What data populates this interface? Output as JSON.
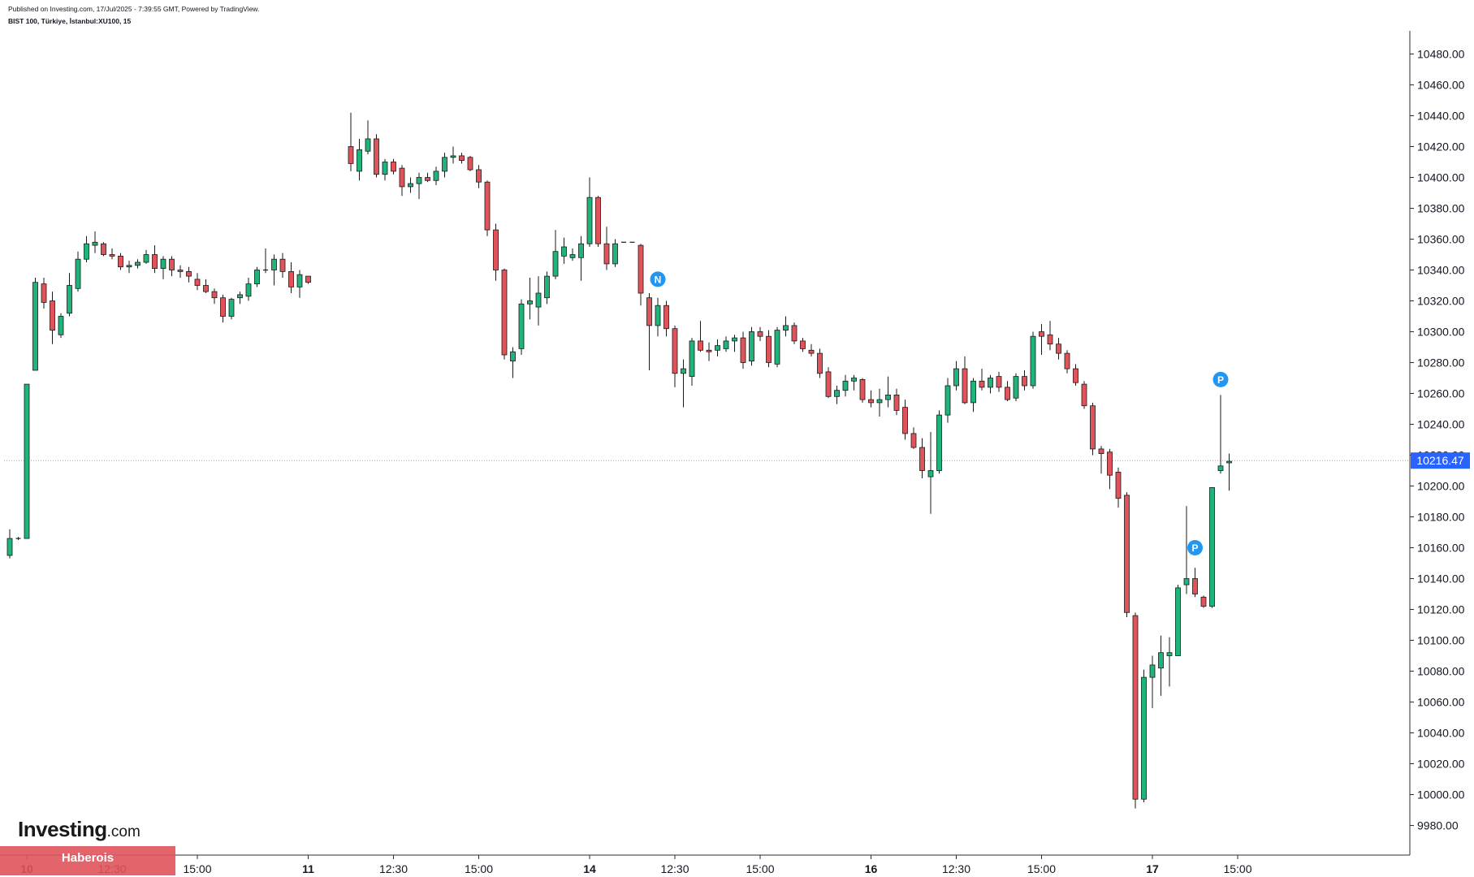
{
  "header": {
    "published": "Published on Investing.com, 17/Jul/2025 - 7:39:55 GMT, Powered by TradingView.",
    "symbol": "BIST 100, Türkiye, İstanbul:XU100, 15"
  },
  "logo": {
    "brand": "Investing",
    "domain": ".com"
  },
  "badge": {
    "text": "Haberois"
  },
  "chart_data": {
    "type": "candlestick",
    "x_axis_labels": [
      {
        "text": "10",
        "bold": true,
        "index": 2
      },
      {
        "text": "12:30",
        "bold": false,
        "index": 12
      },
      {
        "text": "15:00",
        "bold": false,
        "index": 22
      },
      {
        "text": "11",
        "bold": true,
        "index": 35
      },
      {
        "text": "12:30",
        "bold": false,
        "index": 45
      },
      {
        "text": "15:00",
        "bold": false,
        "index": 55
      },
      {
        "text": "14",
        "bold": true,
        "index": 68
      },
      {
        "text": "12:30",
        "bold": false,
        "index": 78
      },
      {
        "text": "15:00",
        "bold": false,
        "index": 88
      },
      {
        "text": "16",
        "bold": true,
        "index": 101
      },
      {
        "text": "12:30",
        "bold": false,
        "index": 111
      },
      {
        "text": "15:00",
        "bold": false,
        "index": 121
      },
      {
        "text": "17",
        "bold": true,
        "index": 134
      },
      {
        "text": "15:00",
        "bold": false,
        "index": 144
      }
    ],
    "y_axis": {
      "min": 9965,
      "max": 10500,
      "ticks": [
        9980,
        10000,
        10020,
        10040,
        10060,
        10080,
        10100,
        10120,
        10140,
        10160,
        10180,
        10200,
        10220,
        10240,
        10260,
        10280,
        10300,
        10320,
        10340,
        10360,
        10380,
        10400,
        10420,
        10440,
        10460,
        10480
      ],
      "tick_labels": [
        "9980.00",
        "10000.00",
        "10020.00",
        "10040.00",
        "10060.00",
        "10080.00",
        "10100.00",
        "10120.00",
        "10140.00",
        "10160.00",
        "10180.00",
        "10200.00",
        "10220.00",
        "10240.00",
        "10260.00",
        "10280.00",
        "10300.00",
        "10320.00",
        "10340.00",
        "10360.00",
        "10380.00",
        "10400.00",
        "10420.00",
        "10440.00",
        "10460.00",
        "10480.00"
      ]
    },
    "last_price": {
      "value": 10216.47,
      "label": "10216.47"
    },
    "colors": {
      "up": "#1fb47a",
      "down": "#e0535a",
      "outline": "#1a1a1a",
      "price_tag": "#2962ff",
      "marker": "#2196f3",
      "axis_text": "#131722"
    },
    "candles": [
      {
        "i": 0,
        "o": 10155,
        "h": 10172,
        "l": 10153,
        "c": 10166
      },
      {
        "i": 1,
        "o": 10166,
        "h": 10167,
        "l": 10165,
        "c": 10166
      },
      {
        "i": 2,
        "o": 10166,
        "h": 10266,
        "l": 10166,
        "c": 10266
      },
      {
        "i": 3,
        "o": 10275,
        "h": 10335,
        "l": 10275,
        "c": 10332
      },
      {
        "i": 4,
        "o": 10331,
        "h": 10335,
        "l": 10315,
        "c": 10319
      },
      {
        "i": 5,
        "o": 10320,
        "h": 10326,
        "l": 10292,
        "c": 10301
      },
      {
        "i": 6,
        "o": 10298,
        "h": 10312,
        "l": 10296,
        "c": 10310
      },
      {
        "i": 7,
        "o": 10312,
        "h": 10338,
        "l": 10310,
        "c": 10330
      },
      {
        "i": 8,
        "o": 10328,
        "h": 10352,
        "l": 10326,
        "c": 10347
      },
      {
        "i": 9,
        "o": 10347,
        "h": 10362,
        "l": 10345,
        "c": 10357
      },
      {
        "i": 10,
        "o": 10356,
        "h": 10365,
        "l": 10351,
        "c": 10358
      },
      {
        "i": 11,
        "o": 10357,
        "h": 10358,
        "l": 10349,
        "c": 10350
      },
      {
        "i": 12,
        "o": 10350,
        "h": 10354,
        "l": 10347,
        "c": 10349
      },
      {
        "i": 13,
        "o": 10349,
        "h": 10351,
        "l": 10340,
        "c": 10342
      },
      {
        "i": 14,
        "o": 10342,
        "h": 10346,
        "l": 10338,
        "c": 10343
      },
      {
        "i": 15,
        "o": 10343,
        "h": 10347,
        "l": 10341,
        "c": 10345
      },
      {
        "i": 16,
        "o": 10345,
        "h": 10353,
        "l": 10344,
        "c": 10350
      },
      {
        "i": 17,
        "o": 10350,
        "h": 10356,
        "l": 10338,
        "c": 10341
      },
      {
        "i": 18,
        "o": 10341,
        "h": 10349,
        "l": 10334,
        "c": 10347
      },
      {
        "i": 19,
        "o": 10347,
        "h": 10349,
        "l": 10336,
        "c": 10340
      },
      {
        "i": 20,
        "o": 10340,
        "h": 10343,
        "l": 10335,
        "c": 10339
      },
      {
        "i": 21,
        "o": 10339,
        "h": 10342,
        "l": 10332,
        "c": 10336
      },
      {
        "i": 22,
        "o": 10334,
        "h": 10338,
        "l": 10327,
        "c": 10330
      },
      {
        "i": 23,
        "o": 10330,
        "h": 10334,
        "l": 10325,
        "c": 10326
      },
      {
        "i": 24,
        "o": 10326,
        "h": 10328,
        "l": 10318,
        "c": 10322
      },
      {
        "i": 25,
        "o": 10322,
        "h": 10324,
        "l": 10306,
        "c": 10310
      },
      {
        "i": 26,
        "o": 10310,
        "h": 10322,
        "l": 10308,
        "c": 10321
      },
      {
        "i": 27,
        "o": 10322,
        "h": 10326,
        "l": 10318,
        "c": 10324
      },
      {
        "i": 28,
        "o": 10323,
        "h": 10335,
        "l": 10320,
        "c": 10331
      },
      {
        "i": 29,
        "o": 10331,
        "h": 10342,
        "l": 10329,
        "c": 10340
      },
      {
        "i": 30,
        "o": 10340,
        "h": 10354,
        "l": 10338,
        "c": 10340
      },
      {
        "i": 31,
        "o": 10340,
        "h": 10350,
        "l": 10330,
        "c": 10347
      },
      {
        "i": 32,
        "o": 10347,
        "h": 10351,
        "l": 10335,
        "c": 10339
      },
      {
        "i": 33,
        "o": 10339,
        "h": 10345,
        "l": 10325,
        "c": 10329
      },
      {
        "i": 34,
        "o": 10329,
        "h": 10340,
        "l": 10322,
        "c": 10337
      },
      {
        "i": 35,
        "o": 10336,
        "h": 10336,
        "l": 10331,
        "c": 10332
      },
      {
        "i": 40,
        "o": 10420,
        "h": 10442,
        "l": 10404,
        "c": 10409
      },
      {
        "i": 41,
        "o": 10404,
        "h": 10425,
        "l": 10398,
        "c": 10418
      },
      {
        "i": 42,
        "o": 10417,
        "h": 10437,
        "l": 10415,
        "c": 10425
      },
      {
        "i": 43,
        "o": 10425,
        "h": 10428,
        "l": 10400,
        "c": 10402
      },
      {
        "i": 44,
        "o": 10402,
        "h": 10412,
        "l": 10398,
        "c": 10410
      },
      {
        "i": 45,
        "o": 10410,
        "h": 10412,
        "l": 10402,
        "c": 10404
      },
      {
        "i": 46,
        "o": 10406,
        "h": 10408,
        "l": 10388,
        "c": 10394
      },
      {
        "i": 47,
        "o": 10394,
        "h": 10400,
        "l": 10390,
        "c": 10396
      },
      {
        "i": 48,
        "o": 10396,
        "h": 10403,
        "l": 10386,
        "c": 10400
      },
      {
        "i": 49,
        "o": 10400,
        "h": 10403,
        "l": 10397,
        "c": 10398
      },
      {
        "i": 50,
        "o": 10398,
        "h": 10407,
        "l": 10395,
        "c": 10404
      },
      {
        "i": 51,
        "o": 10404,
        "h": 10416,
        "l": 10400,
        "c": 10413
      },
      {
        "i": 52,
        "o": 10413,
        "h": 10420,
        "l": 10409,
        "c": 10414
      },
      {
        "i": 53,
        "o": 10414,
        "h": 10416,
        "l": 10409,
        "c": 10411
      },
      {
        "i": 54,
        "o": 10413,
        "h": 10414,
        "l": 10404,
        "c": 10405
      },
      {
        "i": 55,
        "o": 10405,
        "h": 10408,
        "l": 10393,
        "c": 10397
      },
      {
        "i": 56,
        "o": 10397,
        "h": 10398,
        "l": 10362,
        "c": 10366
      },
      {
        "i": 57,
        "o": 10366,
        "h": 10370,
        "l": 10333,
        "c": 10340
      },
      {
        "i": 58,
        "o": 10340,
        "h": 10341,
        "l": 10282,
        "c": 10285
      },
      {
        "i": 59,
        "o": 10281,
        "h": 10290,
        "l": 10270,
        "c": 10287
      },
      {
        "i": 60,
        "o": 10289,
        "h": 10321,
        "l": 10285,
        "c": 10318
      },
      {
        "i": 61,
        "o": 10318,
        "h": 10335,
        "l": 10308,
        "c": 10320
      },
      {
        "i": 62,
        "o": 10316,
        "h": 10336,
        "l": 10304,
        "c": 10325
      },
      {
        "i": 63,
        "o": 10322,
        "h": 10339,
        "l": 10318,
        "c": 10336
      },
      {
        "i": 64,
        "o": 10336,
        "h": 10366,
        "l": 10334,
        "c": 10352
      },
      {
        "i": 65,
        "o": 10349,
        "h": 10361,
        "l": 10344,
        "c": 10355
      },
      {
        "i": 66,
        "o": 10348,
        "h": 10354,
        "l": 10346,
        "c": 10350
      },
      {
        "i": 67,
        "o": 10348,
        "h": 10362,
        "l": 10333,
        "c": 10357
      },
      {
        "i": 68,
        "o": 10357,
        "h": 10400,
        "l": 10355,
        "c": 10387
      },
      {
        "i": 69,
        "o": 10387,
        "h": 10388,
        "l": 10355,
        "c": 10357
      },
      {
        "i": 70,
        "o": 10357,
        "h": 10368,
        "l": 10340,
        "c": 10344
      },
      {
        "i": 71,
        "o": 10344,
        "h": 10360,
        "l": 10342,
        "c": 10357
      },
      {
        "i": 72,
        "o": 10358,
        "h": 10358,
        "l": 10358,
        "c": 10358
      },
      {
        "i": 73,
        "o": 10358,
        "h": 10358,
        "l": 10358,
        "c": 10358
      },
      {
        "i": 74,
        "o": 10356,
        "h": 10357,
        "l": 10317,
        "c": 10325
      },
      {
        "i": 75,
        "o": 10322,
        "h": 10325,
        "l": 10275,
        "c": 10304
      },
      {
        "i": 76,
        "o": 10304,
        "h": 10322,
        "l": 10297,
        "c": 10317
      },
      {
        "i": 77,
        "o": 10317,
        "h": 10320,
        "l": 10297,
        "c": 10302
      },
      {
        "i": 78,
        "o": 10302,
        "h": 10304,
        "l": 10264,
        "c": 10273
      },
      {
        "i": 79,
        "o": 10273,
        "h": 10282,
        "l": 10251,
        "c": 10276
      },
      {
        "i": 80,
        "o": 10271,
        "h": 10296,
        "l": 10265,
        "c": 10294
      },
      {
        "i": 81,
        "o": 10294,
        "h": 10307,
        "l": 10287,
        "c": 10288
      },
      {
        "i": 82,
        "o": 10288,
        "h": 10293,
        "l": 10281,
        "c": 10287
      },
      {
        "i": 83,
        "o": 10288,
        "h": 10295,
        "l": 10284,
        "c": 10291
      },
      {
        "i": 84,
        "o": 10289,
        "h": 10297,
        "l": 10287,
        "c": 10294
      },
      {
        "i": 85,
        "o": 10294,
        "h": 10298,
        "l": 10287,
        "c": 10296
      },
      {
        "i": 86,
        "o": 10296,
        "h": 10300,
        "l": 10276,
        "c": 10280
      },
      {
        "i": 87,
        "o": 10281,
        "h": 10303,
        "l": 10278,
        "c": 10300
      },
      {
        "i": 88,
        "o": 10300,
        "h": 10303,
        "l": 10294,
        "c": 10297
      },
      {
        "i": 89,
        "o": 10297,
        "h": 10301,
        "l": 10277,
        "c": 10280
      },
      {
        "i": 90,
        "o": 10279,
        "h": 10303,
        "l": 10277,
        "c": 10301
      },
      {
        "i": 91,
        "o": 10301,
        "h": 10310,
        "l": 10297,
        "c": 10304
      },
      {
        "i": 92,
        "o": 10304,
        "h": 10306,
        "l": 10292,
        "c": 10294
      },
      {
        "i": 93,
        "o": 10294,
        "h": 10296,
        "l": 10287,
        "c": 10289
      },
      {
        "i": 94,
        "o": 10288,
        "h": 10292,
        "l": 10284,
        "c": 10286
      },
      {
        "i": 95,
        "o": 10286,
        "h": 10289,
        "l": 10270,
        "c": 10273
      },
      {
        "i": 96,
        "o": 10274,
        "h": 10277,
        "l": 10257,
        "c": 10258
      },
      {
        "i": 97,
        "o": 10258,
        "h": 10265,
        "l": 10253,
        "c": 10262
      },
      {
        "i": 98,
        "o": 10262,
        "h": 10272,
        "l": 10258,
        "c": 10268
      },
      {
        "i": 99,
        "o": 10268,
        "h": 10272,
        "l": 10262,
        "c": 10270
      },
      {
        "i": 100,
        "o": 10269,
        "h": 10270,
        "l": 10254,
        "c": 10256
      },
      {
        "i": 101,
        "o": 10256,
        "h": 10262,
        "l": 10251,
        "c": 10254
      },
      {
        "i": 102,
        "o": 10254,
        "h": 10263,
        "l": 10245,
        "c": 10256
      },
      {
        "i": 103,
        "o": 10256,
        "h": 10271,
        "l": 10251,
        "c": 10259
      },
      {
        "i": 104,
        "o": 10259,
        "h": 10263,
        "l": 10246,
        "c": 10249
      },
      {
        "i": 105,
        "o": 10251,
        "h": 10256,
        "l": 10230,
        "c": 10234
      },
      {
        "i": 106,
        "o": 10234,
        "h": 10238,
        "l": 10224,
        "c": 10225
      },
      {
        "i": 107,
        "o": 10225,
        "h": 10231,
        "l": 10205,
        "c": 10210
      },
      {
        "i": 108,
        "o": 10206,
        "h": 10235,
        "l": 10182,
        "c": 10210
      },
      {
        "i": 109,
        "o": 10210,
        "h": 10249,
        "l": 10208,
        "c": 10246
      },
      {
        "i": 110,
        "o": 10246,
        "h": 10270,
        "l": 10241,
        "c": 10265
      },
      {
        "i": 111,
        "o": 10265,
        "h": 10281,
        "l": 10262,
        "c": 10276
      },
      {
        "i": 112,
        "o": 10276,
        "h": 10284,
        "l": 10253,
        "c": 10254
      },
      {
        "i": 113,
        "o": 10254,
        "h": 10270,
        "l": 10248,
        "c": 10268
      },
      {
        "i": 114,
        "o": 10268,
        "h": 10276,
        "l": 10262,
        "c": 10264
      },
      {
        "i": 115,
        "o": 10264,
        "h": 10272,
        "l": 10260,
        "c": 10270
      },
      {
        "i": 116,
        "o": 10271,
        "h": 10274,
        "l": 10261,
        "c": 10264
      },
      {
        "i": 117,
        "o": 10264,
        "h": 10268,
        "l": 10255,
        "c": 10256
      },
      {
        "i": 118,
        "o": 10257,
        "h": 10273,
        "l": 10255,
        "c": 10271
      },
      {
        "i": 119,
        "o": 10271,
        "h": 10275,
        "l": 10262,
        "c": 10265
      },
      {
        "i": 120,
        "o": 10265,
        "h": 10300,
        "l": 10263,
        "c": 10297
      },
      {
        "i": 121,
        "o": 10300,
        "h": 10305,
        "l": 10285,
        "c": 10297
      },
      {
        "i": 122,
        "o": 10298,
        "h": 10307,
        "l": 10288,
        "c": 10292
      },
      {
        "i": 123,
        "o": 10292,
        "h": 10296,
        "l": 10282,
        "c": 10286
      },
      {
        "i": 124,
        "o": 10286,
        "h": 10288,
        "l": 10273,
        "c": 10276
      },
      {
        "i": 125,
        "o": 10276,
        "h": 10279,
        "l": 10265,
        "c": 10267
      },
      {
        "i": 126,
        "o": 10266,
        "h": 10268,
        "l": 10250,
        "c": 10252
      },
      {
        "i": 127,
        "o": 10252,
        "h": 10254,
        "l": 10220,
        "c": 10224
      },
      {
        "i": 128,
        "o": 10224,
        "h": 10226,
        "l": 10208,
        "c": 10221
      },
      {
        "i": 129,
        "o": 10222,
        "h": 10224,
        "l": 10198,
        "c": 10207
      },
      {
        "i": 130,
        "o": 10209,
        "h": 10212,
        "l": 10186,
        "c": 10192
      },
      {
        "i": 131,
        "o": 10194,
        "h": 10196,
        "l": 10115,
        "c": 10118
      },
      {
        "i": 132,
        "o": 10116,
        "h": 10118,
        "l": 9991,
        "c": 9997
      },
      {
        "i": 133,
        "o": 9997,
        "h": 10081,
        "l": 9995,
        "c": 10076
      },
      {
        "i": 134,
        "o": 10076,
        "h": 10090,
        "l": 10056,
        "c": 10084
      },
      {
        "i": 135,
        "o": 10082,
        "h": 10103,
        "l": 10064,
        "c": 10092
      },
      {
        "i": 136,
        "o": 10090,
        "h": 10102,
        "l": 10070,
        "c": 10092
      },
      {
        "i": 137,
        "o": 10090,
        "h": 10136,
        "l": 10090,
        "c": 10134
      },
      {
        "i": 138,
        "o": 10136,
        "h": 10187,
        "l": 10130,
        "c": 10140
      },
      {
        "i": 139,
        "o": 10140,
        "h": 10147,
        "l": 10128,
        "c": 10130
      },
      {
        "i": 140,
        "o": 10128,
        "h": 10129,
        "l": 10121,
        "c": 10122
      },
      {
        "i": 141,
        "o": 10122,
        "h": 10199,
        "l": 10121,
        "c": 10199
      },
      {
        "i": 142,
        "o": 10210,
        "h": 10259,
        "l": 10208,
        "c": 10213
      },
      {
        "i": 143,
        "o": 10215,
        "h": 10221,
        "l": 10197,
        "c": 10216
      }
    ],
    "markers": [
      {
        "label": "N",
        "index": 76,
        "y": 10334
      },
      {
        "label": "P",
        "index": 139,
        "y": 10160
      },
      {
        "label": "P",
        "index": 142,
        "y": 10269
      }
    ]
  }
}
